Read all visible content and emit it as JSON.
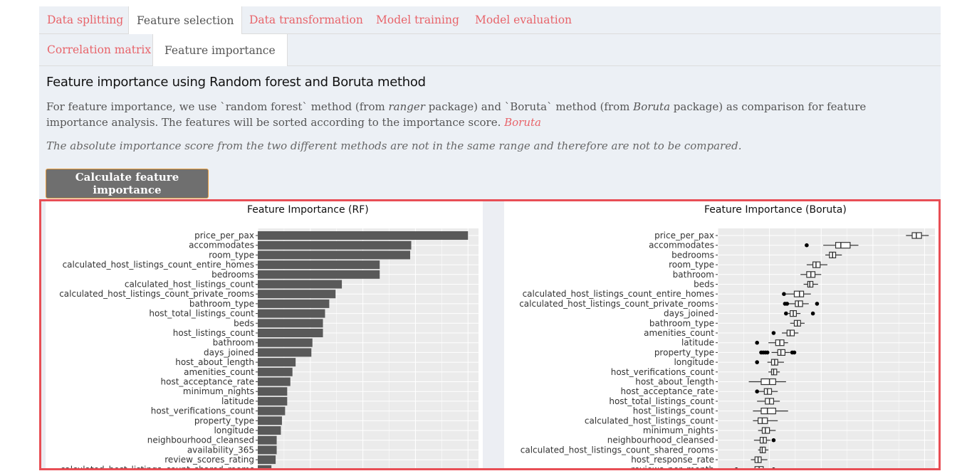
{
  "tabs": {
    "main": [
      "Data splitting",
      "Feature selection",
      "Data transformation",
      "Model training",
      "Model evaluation"
    ],
    "main_active": "Feature selection",
    "sub": [
      "Correlation matrix",
      "Feature importance"
    ],
    "sub_active": "Feature importance"
  },
  "content": {
    "heading": "Feature importance using Random forest and Boruta method",
    "para_1": "For feature importance, we use `random forest` method (from ",
    "para_pkg1": "ranger",
    "para_2": " package) and `Boruta` method (from ",
    "para_pkg2": "Boruta",
    "para_3": " package) as comparison for feature importance analysis. The features will be sorted according to the importance score. ",
    "para_link": "Boruta",
    "note": "The absolute importance score from the two different methods are not in the same range and therefore are not to be compared.",
    "button_label": "Calculate feature importance"
  },
  "chart_data": [
    {
      "type": "bar",
      "title": "Feature Importance (RF)",
      "orientation": "horizontal",
      "categories": [
        "price_per_pax",
        "accommodates",
        "room_type",
        "calculated_host_listings_count_entire_homes",
        "bedrooms",
        "calculated_host_listings_count",
        "calculated_host_listings_count_private_rooms",
        "bathroom_type",
        "host_total_listings_count",
        "beds",
        "host_listings_count",
        "bathroom",
        "days_joined",
        "host_about_length",
        "amenities_count",
        "host_acceptance_rate",
        "minimum_nights",
        "latitude",
        "host_verifications_count",
        "property_type",
        "longitude",
        "neighbourhood_cleansed",
        "availability_365",
        "review_scores_rating",
        "calculated_host_listings_count_shared_rooms"
      ],
      "values": [
        100,
        73,
        72.5,
        58,
        58,
        40,
        37,
        34,
        32,
        31,
        31,
        26,
        25.5,
        18,
        16.5,
        15.5,
        14,
        14,
        13,
        11.5,
        11,
        9,
        9,
        8.5,
        6.5
      ],
      "xlim": [
        0,
        105
      ],
      "colors": {
        "bar": "#595959",
        "panel": "#ebebeb",
        "grid": "#ffffff"
      }
    },
    {
      "type": "boxplot",
      "title": "Feature Importance (Boruta)",
      "orientation": "horizontal",
      "categories": [
        "price_per_pax",
        "accommodates",
        "bedrooms",
        "room_type",
        "bathroom",
        "beds",
        "calculated_host_listings_count_entire_homes",
        "calculated_host_listings_count_private_rooms",
        "days_joined",
        "bathroom_type",
        "amenities_count",
        "latitude",
        "property_type",
        "longitude",
        "host_verifications_count",
        "host_about_length",
        "host_acceptance_rate",
        "host_total_listings_count",
        "host_listings_count",
        "calculated_host_listings_count",
        "minimum_nights",
        "neighbourhood_cleansed",
        "calculated_host_listings_count_shared_rooms",
        "host_response_rate",
        "reviews_per_month"
      ],
      "boxes": [
        {
          "min": 91,
          "q1": 94,
          "med": 96,
          "q3": 98.5,
          "max": 102,
          "out": []
        },
        {
          "min": 51,
          "q1": 57,
          "med": 59.5,
          "q3": 64,
          "max": 68,
          "out": [
            43
          ]
        },
        {
          "min": 52,
          "q1": 54,
          "med": 55.5,
          "q3": 57,
          "max": 60,
          "out": []
        },
        {
          "min": 43,
          "q1": 46,
          "med": 47.5,
          "q3": 49.5,
          "max": 53,
          "out": []
        },
        {
          "min": 40,
          "q1": 43,
          "med": 45,
          "q3": 47,
          "max": 50,
          "out": []
        },
        {
          "min": 41.5,
          "q1": 43.5,
          "med": 44.5,
          "q3": 46,
          "max": 48.5,
          "out": []
        },
        {
          "min": 33,
          "q1": 37,
          "med": 39.5,
          "q3": 41.5,
          "max": 45,
          "out": [
            32
          ]
        },
        {
          "min": 34,
          "q1": 37.5,
          "med": 39,
          "q3": 41,
          "max": 44,
          "out": [
            32.5,
            33.5,
            48
          ]
        },
        {
          "min": 34,
          "q1": 35,
          "med": 36.5,
          "q3": 38,
          "max": 40,
          "out": [
            33,
            46
          ]
        },
        {
          "min": 35,
          "q1": 37,
          "med": 38.5,
          "q3": 40,
          "max": 42,
          "out": []
        },
        {
          "min": 31,
          "q1": 33.5,
          "med": 35,
          "q3": 37,
          "max": 39,
          "out": [
            27
          ]
        },
        {
          "min": 24.5,
          "q1": 28,
          "med": 30,
          "q3": 32,
          "max": 34,
          "out": [
            19
          ]
        },
        {
          "min": 26,
          "q1": 29,
          "med": 30.5,
          "q3": 32.5,
          "max": 35,
          "out": [
            21,
            22,
            23,
            24,
            36,
            37
          ]
        },
        {
          "min": 24,
          "q1": 26,
          "med": 27.5,
          "q3": 29,
          "max": 32,
          "out": [
            19
          ]
        },
        {
          "min": 24.5,
          "q1": 26,
          "med": 27,
          "q3": 28.5,
          "max": 30,
          "out": []
        },
        {
          "min": 15,
          "q1": 21,
          "med": 25,
          "q3": 28,
          "max": 33,
          "out": []
        },
        {
          "min": 20,
          "q1": 22.5,
          "med": 24,
          "q3": 26,
          "max": 29,
          "out": [
            19
          ]
        },
        {
          "min": 19,
          "q1": 23,
          "med": 25,
          "q3": 27,
          "max": 30,
          "out": []
        },
        {
          "min": 17,
          "q1": 21,
          "med": 24,
          "q3": 28,
          "max": 34,
          "out": []
        },
        {
          "min": 17,
          "q1": 19.5,
          "med": 21.5,
          "q3": 24,
          "max": 29,
          "out": []
        },
        {
          "min": 19.5,
          "q1": 21.5,
          "med": 23,
          "q3": 25,
          "max": 28,
          "out": []
        },
        {
          "min": 17.5,
          "q1": 20.5,
          "med": 22,
          "q3": 23.5,
          "max": 25.5,
          "out": [
            27
          ]
        },
        {
          "min": 19.5,
          "q1": 20.5,
          "med": 21.5,
          "q3": 23,
          "max": 24.5,
          "out": []
        },
        {
          "min": 16,
          "q1": 18,
          "med": 19.5,
          "q3": 21,
          "max": 24,
          "out": []
        },
        {
          "min": 15,
          "q1": 18,
          "med": 20,
          "q3": 22,
          "max": 26,
          "out": [
            9,
            27
          ]
        }
      ],
      "xlim": [
        0,
        105
      ],
      "colors": {
        "box": "#333333",
        "panel": "#ebebeb",
        "grid": "#ffffff"
      }
    }
  ]
}
